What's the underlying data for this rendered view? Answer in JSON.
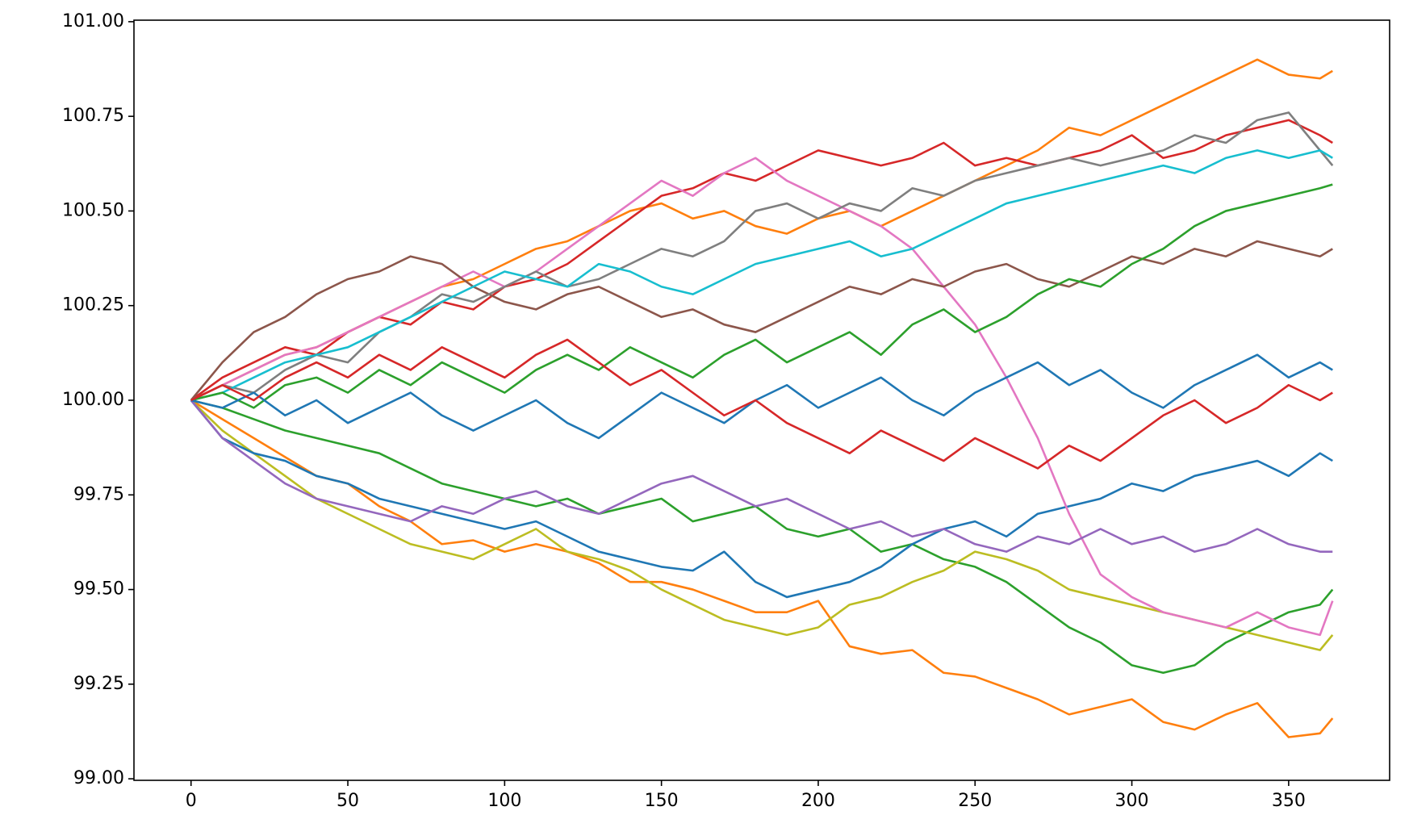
{
  "chart_data": {
    "type": "line",
    "x": [
      0,
      10,
      20,
      30,
      40,
      50,
      60,
      70,
      80,
      90,
      100,
      110,
      120,
      130,
      140,
      150,
      160,
      170,
      180,
      190,
      200,
      210,
      220,
      230,
      240,
      250,
      260,
      270,
      280,
      290,
      300,
      310,
      320,
      330,
      340,
      350,
      360,
      364
    ],
    "xlim": [
      -18.2,
      382.2
    ],
    "xticks": [
      0,
      50,
      100,
      150,
      200,
      250,
      300,
      350
    ],
    "ylim": [
      98.996,
      101.004
    ],
    "yticks": [
      {
        "value": 99,
        "label": "99.00"
      },
      99.25,
      {
        "value": 99.5,
        "label": "99.50"
      },
      99.75,
      {
        "value": 100,
        "label": "100.00"
      },
      100.25,
      {
        "value": 100.5,
        "label": "100.50"
      },
      100.75,
      {
        "value": 101,
        "label": "101.00"
      }
    ],
    "grid": false,
    "series": [
      {
        "color": "#ff7f0e",
        "values": [
          100.0,
          99.95,
          99.9,
          99.85,
          99.8,
          99.78,
          99.72,
          99.68,
          99.62,
          99.63,
          99.6,
          99.62,
          99.6,
          99.57,
          99.52,
          99.52,
          99.5,
          99.47,
          99.44,
          99.44,
          99.47,
          99.35,
          99.33,
          99.34,
          99.28,
          99.27,
          99.24,
          99.21,
          99.17,
          99.19,
          99.21,
          99.15,
          99.13,
          99.17,
          99.2,
          99.11,
          99.12,
          99.16
        ]
      },
      {
        "color": "#ff7f0e",
        "values": [
          100.0,
          100.04,
          100.08,
          100.12,
          100.14,
          100.18,
          100.22,
          100.26,
          100.3,
          100.32,
          100.36,
          100.4,
          100.42,
          100.46,
          100.5,
          100.52,
          100.48,
          100.5,
          100.46,
          100.44,
          100.48,
          100.5,
          100.46,
          100.5,
          100.54,
          100.58,
          100.62,
          100.66,
          100.72,
          100.7,
          100.74,
          100.78,
          100.82,
          100.86,
          100.9,
          100.86,
          100.85,
          100.87
        ]
      },
      {
        "color": "#d62728",
        "values": [
          100.0,
          100.06,
          100.1,
          100.14,
          100.12,
          100.18,
          100.22,
          100.2,
          100.26,
          100.24,
          100.3,
          100.32,
          100.36,
          100.42,
          100.48,
          100.54,
          100.56,
          100.6,
          100.58,
          100.62,
          100.66,
          100.64,
          100.62,
          100.64,
          100.68,
          100.62,
          100.64,
          100.62,
          100.64,
          100.66,
          100.7,
          100.64,
          100.66,
          100.7,
          100.72,
          100.74,
          100.7,
          100.68
        ]
      },
      {
        "color": "#2ca02c",
        "values": [
          100.0,
          99.98,
          99.95,
          99.92,
          99.9,
          99.88,
          99.86,
          99.82,
          99.78,
          99.76,
          99.74,
          99.72,
          99.74,
          99.7,
          99.72,
          99.74,
          99.68,
          99.7,
          99.72,
          99.66,
          99.64,
          99.66,
          99.6,
          99.62,
          99.58,
          99.56,
          99.52,
          99.46,
          99.4,
          99.36,
          99.3,
          99.28,
          99.3,
          99.36,
          99.4,
          99.44,
          99.46,
          99.5
        ]
      },
      {
        "color": "#bcbd22",
        "values": [
          100.0,
          99.92,
          99.86,
          99.8,
          99.74,
          99.7,
          99.66,
          99.62,
          99.6,
          99.58,
          99.62,
          99.66,
          99.6,
          99.58,
          99.55,
          99.5,
          99.46,
          99.42,
          99.4,
          99.38,
          99.4,
          99.46,
          99.48,
          99.52,
          99.55,
          99.6,
          99.58,
          99.55,
          99.5,
          99.48,
          99.46,
          99.44,
          99.42,
          99.4,
          99.38,
          99.36,
          99.34,
          99.38
        ]
      },
      {
        "color": "#1f77b4",
        "values": [
          100.0,
          99.9,
          99.86,
          99.84,
          99.8,
          99.78,
          99.74,
          99.72,
          99.7,
          99.68,
          99.66,
          99.68,
          99.64,
          99.6,
          99.58,
          99.56,
          99.55,
          99.6,
          99.52,
          99.48,
          99.5,
          99.52,
          99.56,
          99.62,
          99.66,
          99.68,
          99.64,
          99.7,
          99.72,
          99.74,
          99.78,
          99.76,
          99.8,
          99.82,
          99.84,
          99.8,
          99.86,
          99.84
        ]
      },
      {
        "color": "#e377c2",
        "values": [
          100.0,
          100.04,
          100.08,
          100.12,
          100.14,
          100.18,
          100.22,
          100.26,
          100.3,
          100.34,
          100.3,
          100.34,
          100.4,
          100.46,
          100.52,
          100.58,
          100.54,
          100.6,
          100.64,
          100.58,
          100.54,
          100.5,
          100.46,
          100.4,
          100.3,
          100.2,
          100.06,
          99.9,
          99.7,
          99.54,
          99.48,
          99.44,
          99.42,
          99.4,
          99.44,
          99.4,
          99.38,
          99.47
        ]
      },
      {
        "color": "#8c564b",
        "values": [
          100.0,
          100.1,
          100.18,
          100.22,
          100.28,
          100.32,
          100.34,
          100.38,
          100.36,
          100.3,
          100.26,
          100.24,
          100.28,
          100.3,
          100.26,
          100.22,
          100.24,
          100.2,
          100.18,
          100.22,
          100.26,
          100.3,
          100.28,
          100.32,
          100.3,
          100.34,
          100.36,
          100.32,
          100.3,
          100.34,
          100.38,
          100.36,
          100.4,
          100.38,
          100.42,
          100.4,
          100.38,
          100.4
        ]
      },
      {
        "color": "#9467bd",
        "values": [
          100.0,
          99.9,
          99.84,
          99.78,
          99.74,
          99.72,
          99.7,
          99.68,
          99.72,
          99.7,
          99.74,
          99.76,
          99.72,
          99.7,
          99.74,
          99.78,
          99.8,
          99.76,
          99.72,
          99.74,
          99.7,
          99.66,
          99.68,
          99.64,
          99.66,
          99.62,
          99.6,
          99.64,
          99.62,
          99.66,
          99.62,
          99.64,
          99.6,
          99.62,
          99.66,
          99.62,
          99.6,
          99.6
        ]
      },
      {
        "color": "#7f7f7f",
        "values": [
          100.0,
          100.04,
          100.02,
          100.08,
          100.12,
          100.1,
          100.18,
          100.22,
          100.28,
          100.26,
          100.3,
          100.34,
          100.3,
          100.32,
          100.36,
          100.4,
          100.38,
          100.42,
          100.5,
          100.52,
          100.48,
          100.52,
          100.5,
          100.56,
          100.54,
          100.58,
          100.6,
          100.62,
          100.64,
          100.62,
          100.64,
          100.66,
          100.7,
          100.68,
          100.74,
          100.76,
          100.66,
          100.62
        ]
      },
      {
        "color": "#17becf",
        "values": [
          100.0,
          100.02,
          100.06,
          100.1,
          100.12,
          100.14,
          100.18,
          100.22,
          100.26,
          100.3,
          100.34,
          100.32,
          100.3,
          100.36,
          100.34,
          100.3,
          100.28,
          100.32,
          100.36,
          100.38,
          100.4,
          100.42,
          100.38,
          100.4,
          100.44,
          100.48,
          100.52,
          100.54,
          100.56,
          100.58,
          100.6,
          100.62,
          100.6,
          100.64,
          100.66,
          100.64,
          100.66,
          100.64
        ]
      },
      {
        "color": "#2ca02c",
        "values": [
          100.0,
          100.02,
          99.98,
          100.04,
          100.06,
          100.02,
          100.08,
          100.04,
          100.1,
          100.06,
          100.02,
          100.08,
          100.12,
          100.08,
          100.14,
          100.1,
          100.06,
          100.12,
          100.16,
          100.1,
          100.14,
          100.18,
          100.12,
          100.2,
          100.24,
          100.18,
          100.22,
          100.28,
          100.32,
          100.3,
          100.36,
          100.4,
          100.46,
          100.5,
          100.52,
          100.54,
          100.56,
          100.57
        ]
      },
      {
        "color": "#1f77b4",
        "values": [
          100.0,
          99.98,
          100.02,
          99.96,
          100.0,
          99.94,
          99.98,
          100.02,
          99.96,
          99.92,
          99.96,
          100.0,
          99.94,
          99.9,
          99.96,
          100.02,
          99.98,
          99.94,
          100.0,
          100.04,
          99.98,
          100.02,
          100.06,
          100.0,
          99.96,
          100.02,
          100.06,
          100.1,
          100.04,
          100.08,
          100.02,
          99.98,
          100.04,
          100.08,
          100.12,
          100.06,
          100.1,
          100.08
        ]
      },
      {
        "color": "#d62728",
        "values": [
          100.0,
          100.04,
          100.0,
          100.06,
          100.1,
          100.06,
          100.12,
          100.08,
          100.14,
          100.1,
          100.06,
          100.12,
          100.16,
          100.1,
          100.04,
          100.08,
          100.02,
          99.96,
          100.0,
          99.94,
          99.9,
          99.86,
          99.92,
          99.88,
          99.84,
          99.9,
          99.86,
          99.82,
          99.88,
          99.84,
          99.9,
          99.96,
          100.0,
          99.94,
          99.98,
          100.04,
          100.0,
          100.02
        ]
      }
    ]
  }
}
